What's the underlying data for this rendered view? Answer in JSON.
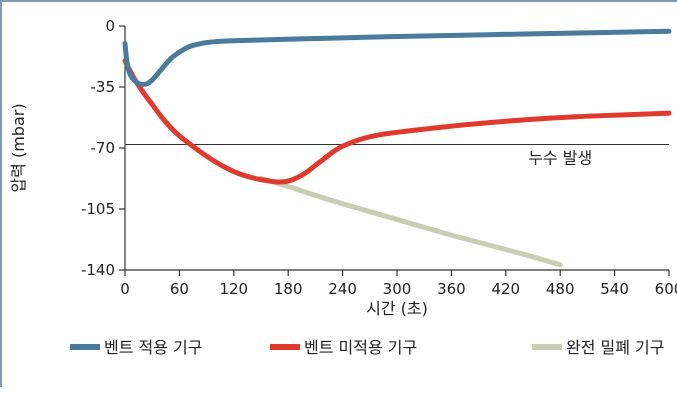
{
  "chart_data": {
    "type": "line",
    "xlabel": "시간 (초)",
    "ylabel": "압력 (mbar)",
    "xlim": [
      0,
      600
    ],
    "ylim": [
      -140,
      0
    ],
    "xticks": [
      0,
      60,
      120,
      180,
      240,
      300,
      360,
      420,
      480,
      540,
      600
    ],
    "yticks": [
      0,
      -35,
      -70,
      -105,
      -140
    ],
    "grid": false,
    "legend_position": "bottom",
    "series": [
      {
        "name": "벤트 적용 기구",
        "color": "#4a7a9c",
        "x": [
          0,
          2,
          5,
          10,
          15,
          20,
          25,
          30,
          40,
          50,
          60,
          70,
          80,
          90,
          100,
          120,
          150,
          200,
          250,
          300,
          400,
          500,
          600
        ],
        "y": [
          -10,
          -20,
          -27,
          -31,
          -33,
          -33.5,
          -33,
          -31,
          -25,
          -19,
          -15,
          -12,
          -10.5,
          -9.5,
          -9,
          -8.5,
          -8,
          -7.3,
          -6.7,
          -6,
          -5,
          -4,
          -3
        ]
      },
      {
        "name": "벤트 미적용 기구",
        "color": "#e03a2f",
        "x": [
          0,
          10,
          20,
          30,
          40,
          50,
          60,
          80,
          100,
          120,
          140,
          160,
          170,
          180,
          190,
          200,
          210,
          220,
          230,
          240,
          260,
          280,
          300,
          350,
          400,
          450,
          500,
          550,
          600
        ],
        "y": [
          -20,
          -30,
          -38,
          -45,
          -52,
          -58,
          -63,
          -71,
          -78,
          -83.5,
          -87,
          -89,
          -89.5,
          -89,
          -87,
          -84,
          -80,
          -76,
          -72,
          -69,
          -65,
          -62.5,
          -61,
          -58,
          -55.5,
          -53.5,
          -52,
          -51,
          -50
        ]
      },
      {
        "name": "완전 밀폐 기구",
        "color": "#c9cdb3",
        "x": [
          150,
          180,
          200,
          240,
          280,
          320,
          360,
          400,
          440,
          480
        ],
        "y": [
          -87.5,
          -92,
          -95.5,
          -102,
          -108,
          -114,
          -120,
          -125.5,
          -131,
          -137
        ]
      }
    ],
    "hlines": [
      {
        "y": -68,
        "color": "#333333",
        "label": "누수 발생"
      }
    ]
  }
}
